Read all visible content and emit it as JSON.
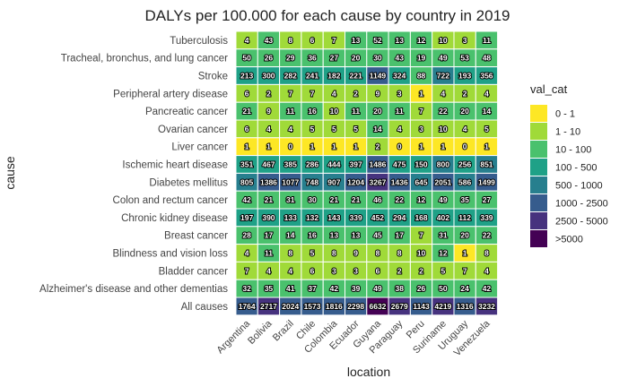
{
  "chart_data": {
    "type": "heatmap",
    "title": "DALYs per 100.000 for each cause by country in 2019",
    "xlabel": "location",
    "ylabel": "cause",
    "locations": [
      "Argentina",
      "Bolivia",
      "Brazil",
      "Chile",
      "Colombia",
      "Ecuador",
      "Guyana",
      "Paraguay",
      "Peru",
      "Suriname",
      "Uruguay",
      "Venezuela"
    ],
    "causes": [
      "Tuberculosis",
      "Tracheal, bronchus, and lung cancer",
      "Stroke",
      "Peripheral artery disease",
      "Pancreatic cancer",
      "Ovarian cancer",
      "Liver cancer",
      "Ischemic heart disease",
      "Diabetes mellitus",
      "Colon and rectum cancer",
      "Chronic kidney disease",
      "Breast cancer",
      "Blindness and vision loss",
      "Bladder cancer",
      "Alzheimer's disease and other dementias",
      "All causes"
    ],
    "values": [
      [
        4,
        43,
        8,
        6,
        7,
        13,
        52,
        13,
        12,
        10,
        3,
        11
      ],
      [
        50,
        26,
        29,
        36,
        27,
        20,
        30,
        43,
        19,
        49,
        53,
        48
      ],
      [
        213,
        300,
        282,
        241,
        182,
        221,
        1149,
        324,
        88,
        722,
        193,
        356
      ],
      [
        6,
        2,
        7,
        7,
        4,
        2,
        9,
        3,
        1,
        4,
        2,
        4
      ],
      [
        21,
        9,
        11,
        16,
        10,
        11,
        20,
        11,
        7,
        22,
        20,
        14
      ],
      [
        6,
        4,
        4,
        5,
        5,
        5,
        14,
        4,
        3,
        10,
        4,
        5
      ],
      [
        1,
        1,
        0,
        1,
        1,
        1,
        2,
        0,
        1,
        1,
        0,
        1
      ],
      [
        351,
        467,
        385,
        286,
        444,
        397,
        1486,
        475,
        150,
        800,
        256,
        851
      ],
      [
        805,
        1386,
        1077,
        748,
        907,
        1204,
        3267,
        1436,
        645,
        2051,
        586,
        1499
      ],
      [
        42,
        21,
        31,
        30,
        21,
        21,
        46,
        22,
        12,
        49,
        35,
        27
      ],
      [
        197,
        390,
        133,
        132,
        143,
        339,
        452,
        294,
        168,
        402,
        112,
        339
      ],
      [
        28,
        17,
        14,
        16,
        13,
        13,
        45,
        17,
        7,
        31,
        20,
        22
      ],
      [
        4,
        11,
        8,
        5,
        8,
        9,
        8,
        8,
        10,
        12,
        1,
        8
      ],
      [
        7,
        4,
        4,
        6,
        3,
        3,
        6,
        2,
        2,
        5,
        7,
        4
      ],
      [
        32,
        35,
        41,
        37,
        42,
        39,
        49,
        38,
        26,
        50,
        24,
        42
      ],
      [
        1764,
        2717,
        2024,
        1573,
        1816,
        2298,
        6632,
        2679,
        1143,
        4219,
        1316,
        3232
      ]
    ],
    "legend": {
      "title": "val_cat",
      "placement": "right",
      "entries": [
        {
          "label": "0 - 1",
          "color": "#FDE725"
        },
        {
          "label": "1 - 10",
          "color": "#A0DA39"
        },
        {
          "label": "10 - 100",
          "color": "#4AC16D"
        },
        {
          "label": "100 - 500",
          "color": "#1FA187"
        },
        {
          "label": "500 - 1000",
          "color": "#277F8E"
        },
        {
          "label": "1000 - 2500",
          "color": "#365C8D"
        },
        {
          "label": "2500 - 5000",
          "color": "#46327E"
        },
        {
          "label": ">5000",
          "color": "#440154"
        }
      ]
    }
  }
}
